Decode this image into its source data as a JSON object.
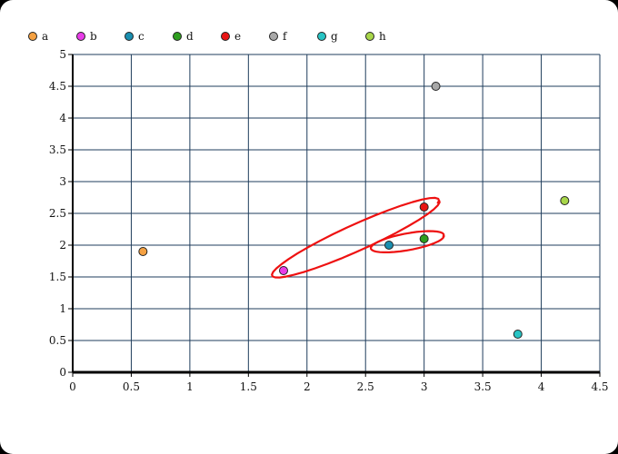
{
  "chart_data": {
    "type": "scatter",
    "title": "",
    "xlabel": "",
    "ylabel": "",
    "xlim": [
      0,
      4.5
    ],
    "ylim": [
      0,
      5
    ],
    "xticks": [
      "0",
      "0.5",
      "1",
      "1.5",
      "2",
      "2.5",
      "3",
      "3.5",
      "4",
      "4.5"
    ],
    "yticks": [
      "0",
      "0.5",
      "1",
      "1.5",
      "2",
      "2.5",
      "3",
      "3.5",
      "4",
      "4.5",
      "5"
    ],
    "grid": true,
    "grid_color": "#1f3d5c",
    "legend_position": "top-left",
    "series": [
      {
        "name": "a",
        "x": 0.6,
        "y": 1.9,
        "color": "#f5a142"
      },
      {
        "name": "b",
        "x": 1.8,
        "y": 1.6,
        "color": "#e83de8"
      },
      {
        "name": "c",
        "x": 2.7,
        "y": 2.0,
        "color": "#1a8fb0"
      },
      {
        "name": "d",
        "x": 3.0,
        "y": 2.1,
        "color": "#2e9e1e"
      },
      {
        "name": "e",
        "x": 3.0,
        "y": 2.6,
        "color": "#e81414"
      },
      {
        "name": "f",
        "x": 3.1,
        "y": 4.5,
        "color": "#a8a8a8"
      },
      {
        "name": "g",
        "x": 3.8,
        "y": 0.6,
        "color": "#28c4c4"
      },
      {
        "name": "h",
        "x": 4.2,
        "y": 2.7,
        "color": "#a8d64a"
      }
    ],
    "annotations": [
      {
        "type": "ellipse",
        "from": [
          1.8,
          1.6
        ],
        "to": [
          3.0,
          2.6
        ],
        "color": "#ee1111"
      },
      {
        "type": "ellipse",
        "from": [
          2.7,
          2.0
        ],
        "to": [
          3.0,
          2.1
        ],
        "color": "#ee1111"
      }
    ]
  }
}
